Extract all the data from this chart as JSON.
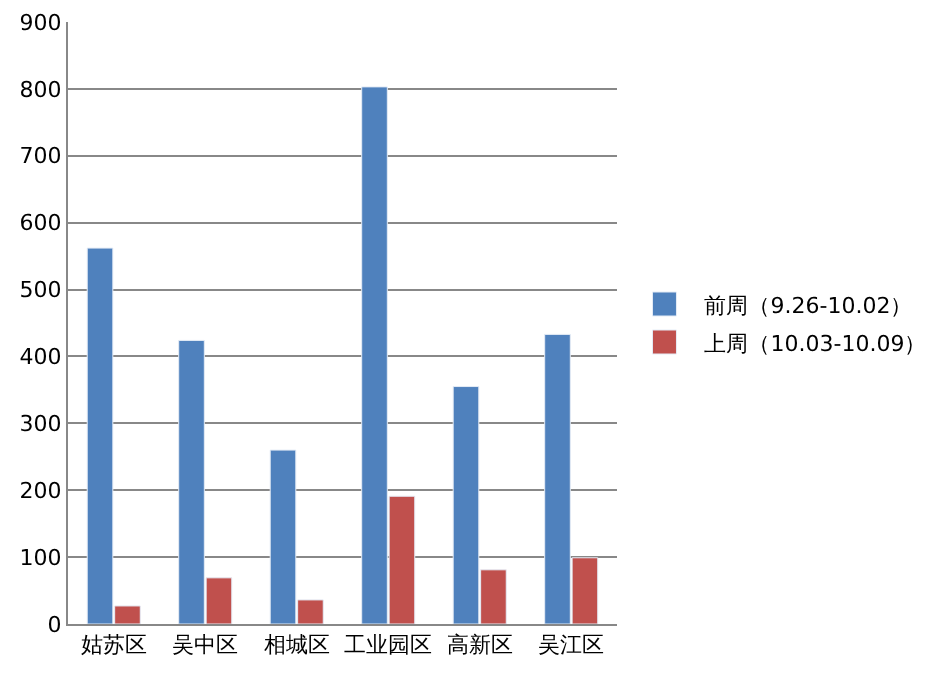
{
  "chart_data": {
    "type": "bar",
    "categories": [
      "姑苏区",
      "吴中区",
      "相城区",
      "工业园区",
      "高新区",
      "吴江区"
    ],
    "series": [
      {
        "name": "前周（9.26-10.02）",
        "color": "#4f81bd",
        "values": [
          562,
          424,
          260,
          803,
          355,
          433
        ]
      },
      {
        "name": "上周（10.03-10.09）",
        "color": "#c0504d",
        "values": [
          27,
          69,
          36,
          191,
          81,
          99
        ]
      }
    ],
    "ylim": [
      0,
      900
    ],
    "yticks": [
      0,
      100,
      200,
      300,
      400,
      500,
      600,
      700,
      800,
      900
    ],
    "grid": "y",
    "legend": "right"
  }
}
